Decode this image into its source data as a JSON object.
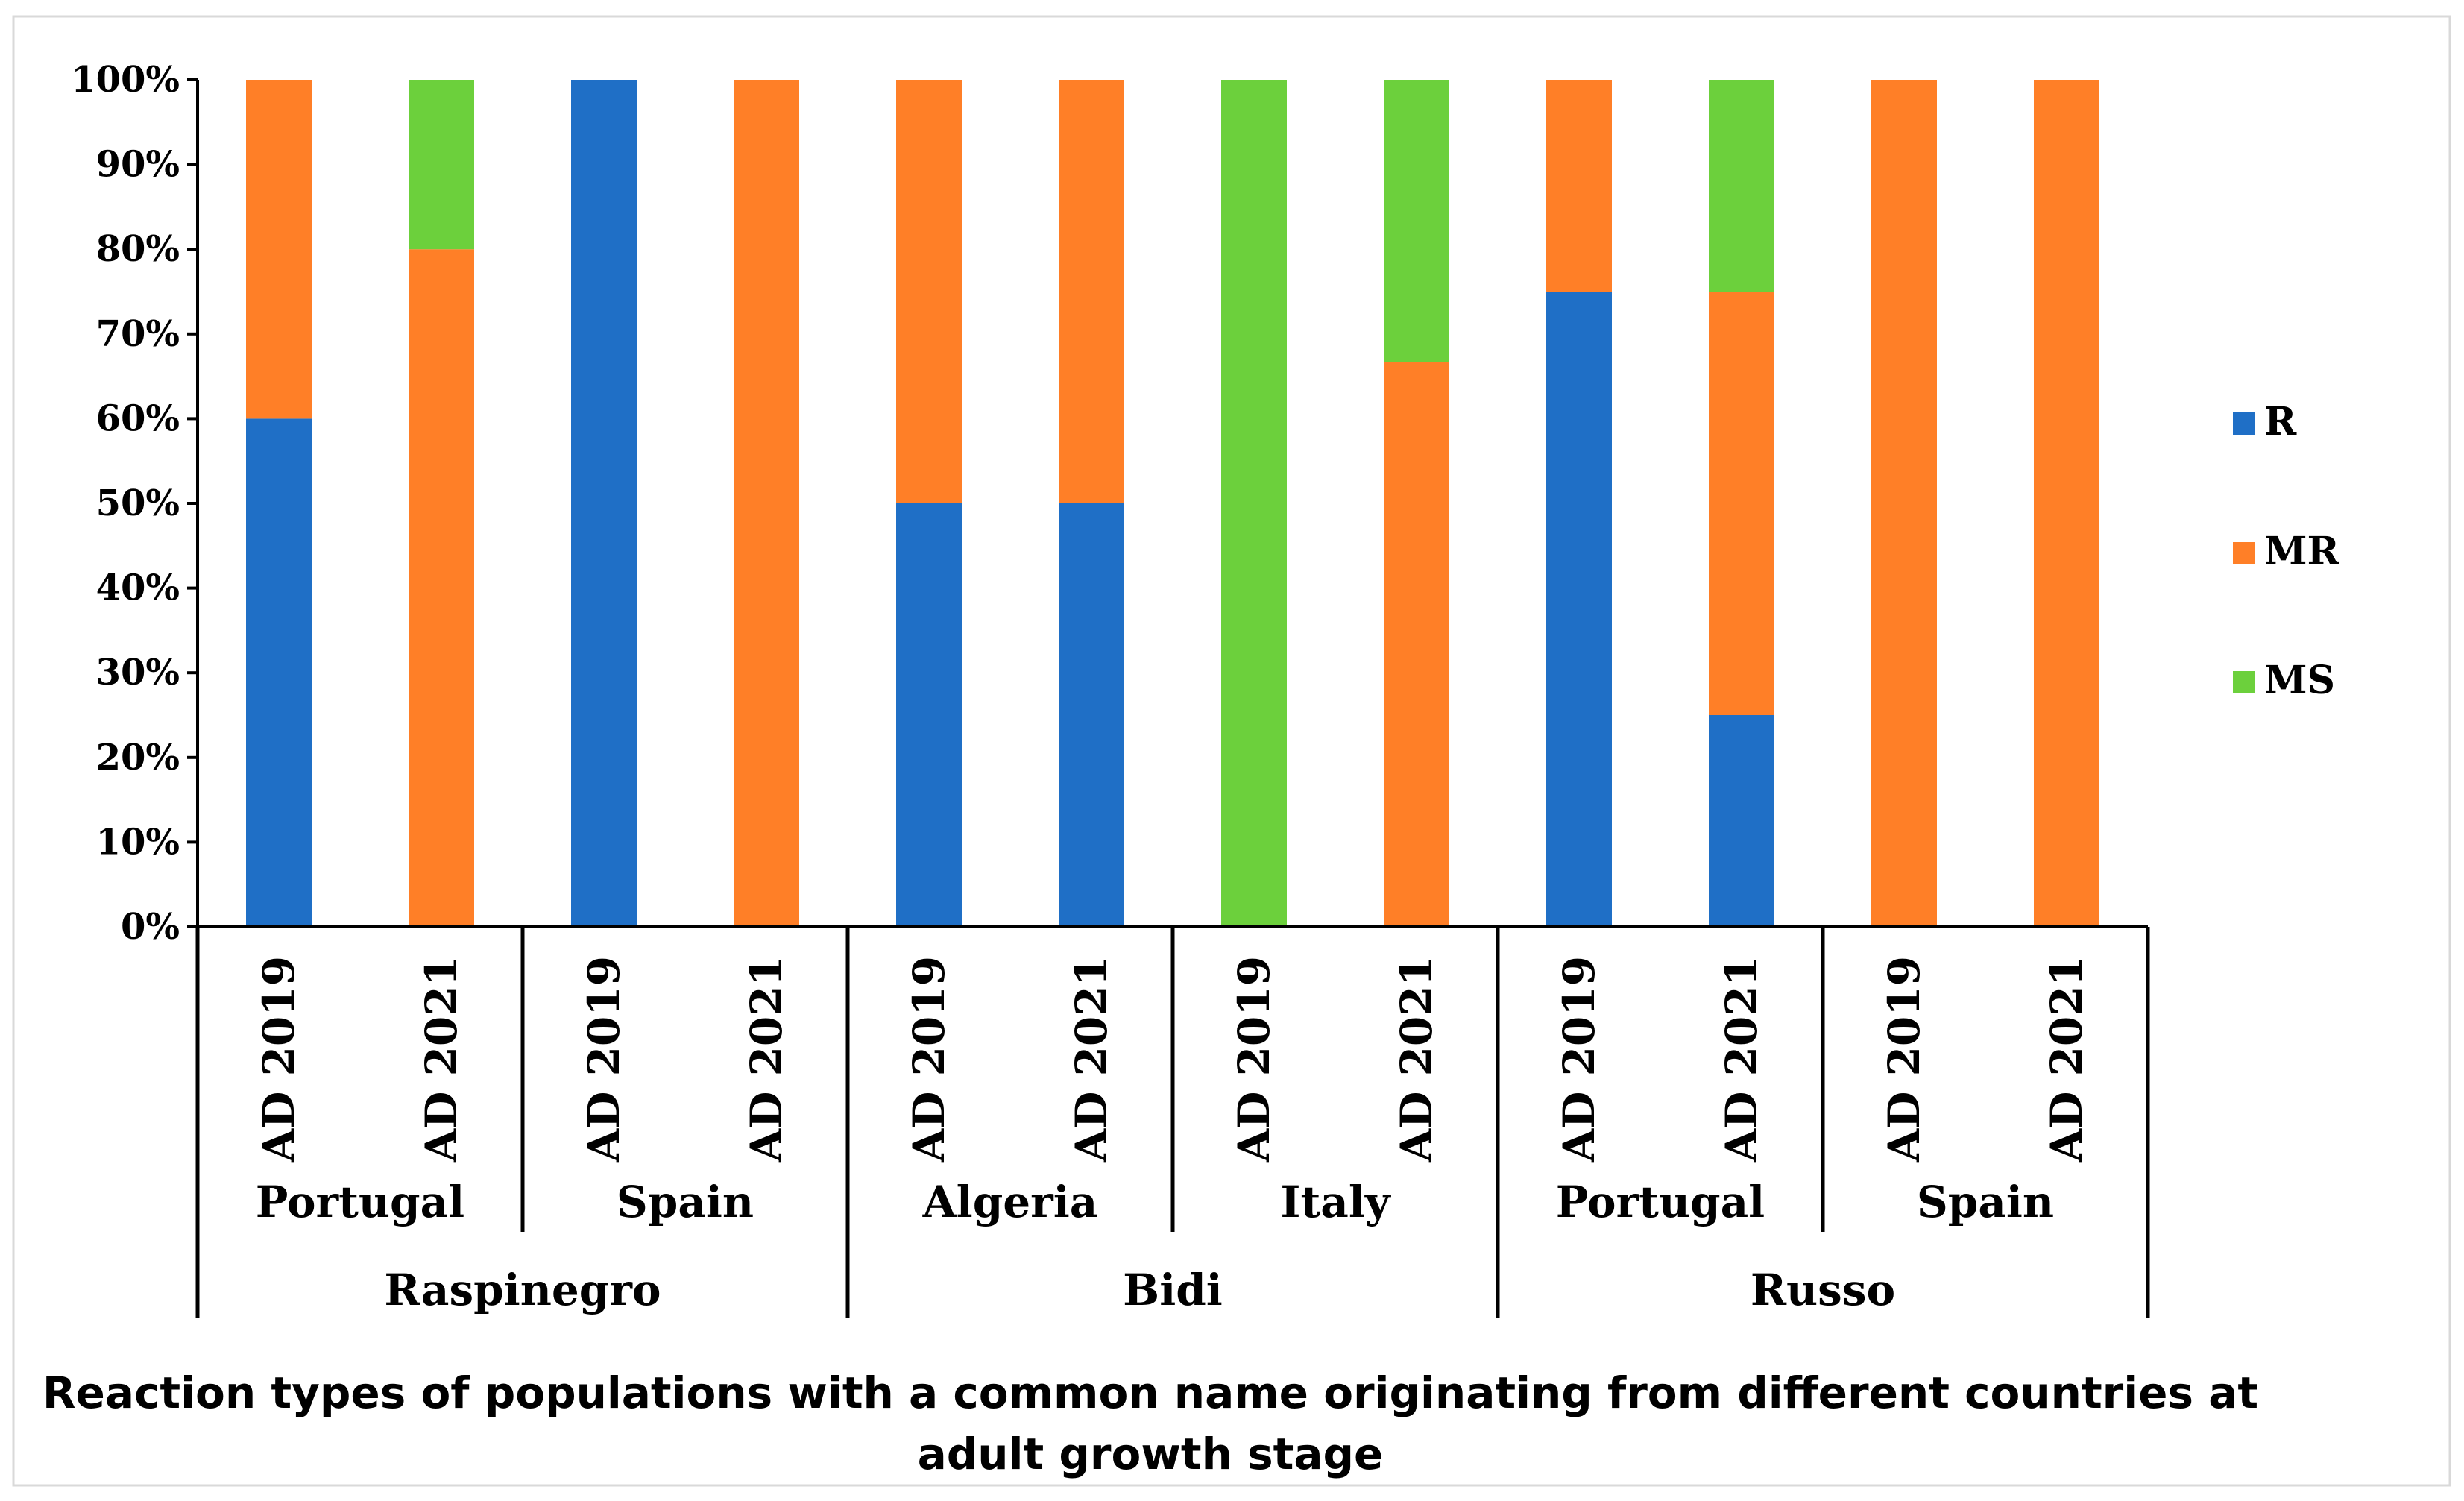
{
  "chart_data": {
    "type": "bar",
    "stacked": true,
    "percent": true,
    "title_lines": [
      "Reaction types of populations with a common name originating from different countries at",
      "adult growth stage"
    ],
    "categories": [
      "AD 2019",
      "AD 2021",
      "AD 2019",
      "AD 2021",
      "AD 2019",
      "AD 2021",
      "AD 2019",
      "AD 2021",
      "AD 2019",
      "AD 2021",
      "AD 2019",
      "AD 2021"
    ],
    "countries": [
      "Portugal",
      "Spain",
      "Algeria",
      "Italy",
      "Portugal",
      "Spain"
    ],
    "groups": [
      "Raspinegro",
      "Bidi",
      "Russo"
    ],
    "series": [
      {
        "name": "R",
        "color": "#1F6FC6",
        "values": [
          60,
          0,
          100,
          0,
          50,
          50,
          0,
          0,
          75,
          25,
          0,
          0
        ]
      },
      {
        "name": "MR",
        "color": "#FF7F27",
        "values": [
          40,
          80,
          0,
          100,
          50,
          50,
          0,
          66.7,
          25,
          50,
          100,
          100
        ]
      },
      {
        "name": "MS",
        "color": "#6CD03C",
        "values": [
          0,
          20,
          0,
          0,
          0,
          0,
          100,
          33.3,
          0,
          25,
          0,
          0
        ]
      }
    ],
    "yticks": [
      "0%",
      "10%",
      "20%",
      "30%",
      "40%",
      "50%",
      "60%",
      "70%",
      "80%",
      "90%",
      "100%"
    ],
    "ylim": [
      0,
      100
    ],
    "legend_position": "right"
  }
}
